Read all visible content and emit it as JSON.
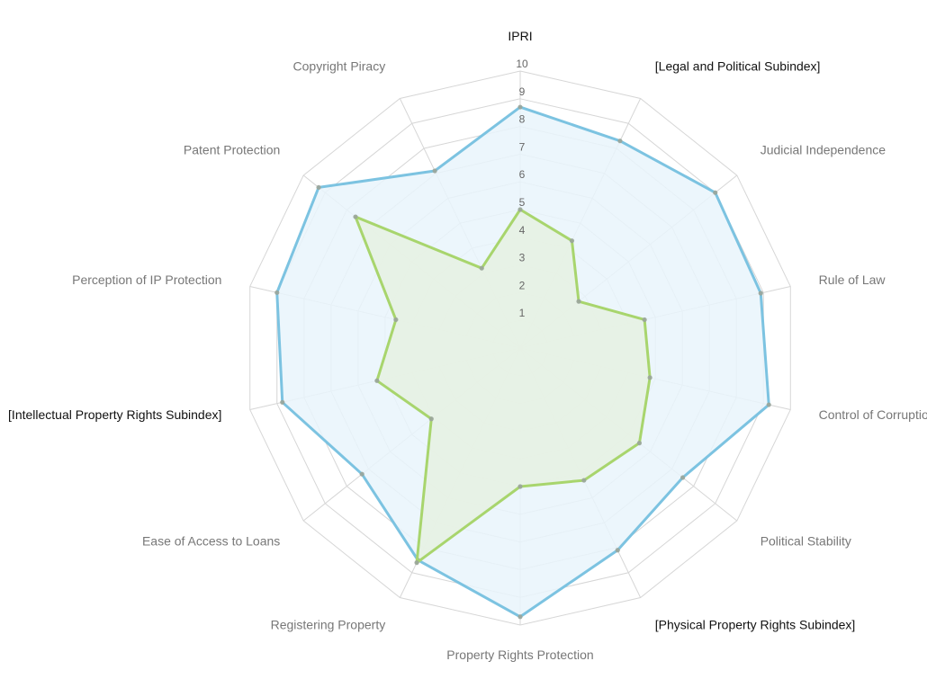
{
  "chart_data": {
    "type": "radar",
    "categories": [
      "IPRI",
      "[Legal and Political Subindex]",
      "Judicial Independence",
      "Rule of Law",
      "Control of Corruption",
      "Political Stability",
      "[Physical Property Rights Subindex]",
      "Property Rights Protection",
      "Registering Property",
      "Ease of Access to Loans",
      "[Intellectual Property Rights Subindex]",
      "Perception of IP Protection",
      "Patent Protection",
      "Copyright Piracy"
    ],
    "highlighted_categories": [
      "IPRI",
      "[Legal and Political Subindex]",
      "[Physical Property Rights Subindex]",
      "[Intellectual Property Rights Subindex]"
    ],
    "rlim": [
      0,
      10
    ],
    "ticks": [
      1,
      2,
      3,
      4,
      5,
      6,
      7,
      8,
      9,
      10
    ],
    "grid": true,
    "series": [
      {
        "values": [
          8.7,
          8.3,
          9.0,
          8.9,
          9.2,
          7.5,
          8.1,
          9.7,
          8.5,
          7.3,
          8.8,
          9.0,
          9.3,
          7.1
        ],
        "color": "#7cc3e1",
        "fill": "#e9f4fc"
      },
      {
        "values": [
          5.0,
          4.3,
          2.7,
          4.6,
          4.8,
          5.5,
          5.3,
          5.0,
          8.6,
          4.1,
          5.3,
          4.6,
          7.6,
          3.2
        ],
        "color": "#a8d56d",
        "fill": "#e6f1e2"
      }
    ]
  }
}
